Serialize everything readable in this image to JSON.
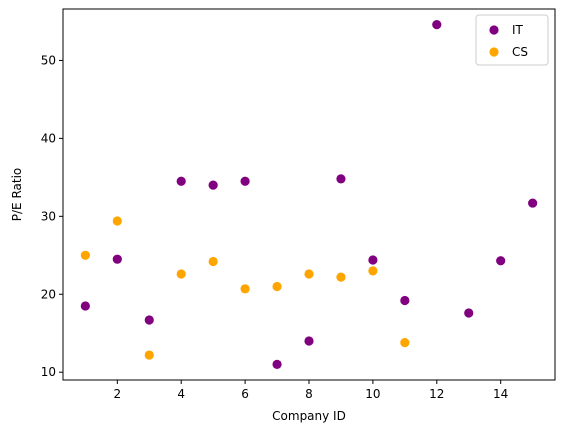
{
  "chart_data": {
    "type": "scatter",
    "title": "",
    "xlabel": "Company ID",
    "ylabel": "P/E Ratio",
    "xlim": [
      0.3,
      15.7
    ],
    "ylim": [
      9.0,
      56.6
    ],
    "xticks": [
      2,
      4,
      6,
      8,
      10,
      12,
      14
    ],
    "yticks": [
      10,
      20,
      30,
      40,
      50
    ],
    "grid": false,
    "legend_position": "top-right",
    "series": [
      {
        "name": "IT",
        "color": "#800080",
        "points": [
          {
            "x": 1,
            "y": 18.5
          },
          {
            "x": 2,
            "y": 24.5
          },
          {
            "x": 3,
            "y": 16.7
          },
          {
            "x": 4,
            "y": 34.5
          },
          {
            "x": 5,
            "y": 34.0
          },
          {
            "x": 6,
            "y": 34.5
          },
          {
            "x": 7,
            "y": 11.0
          },
          {
            "x": 8,
            "y": 14.0
          },
          {
            "x": 9,
            "y": 34.8
          },
          {
            "x": 10,
            "y": 24.4
          },
          {
            "x": 11,
            "y": 19.2
          },
          {
            "x": 12,
            "y": 54.6
          },
          {
            "x": 13,
            "y": 17.6
          },
          {
            "x": 14,
            "y": 24.3
          },
          {
            "x": 15,
            "y": 31.7
          }
        ]
      },
      {
        "name": "CS",
        "color": "#FFA500",
        "points": [
          {
            "x": 1,
            "y": 25.0
          },
          {
            "x": 2,
            "y": 29.4
          },
          {
            "x": 3,
            "y": 12.2
          },
          {
            "x": 4,
            "y": 22.6
          },
          {
            "x": 5,
            "y": 24.2
          },
          {
            "x": 6,
            "y": 20.7
          },
          {
            "x": 7,
            "y": 21.0
          },
          {
            "x": 8,
            "y": 22.6
          },
          {
            "x": 9,
            "y": 22.2
          },
          {
            "x": 10,
            "y": 23.0
          },
          {
            "x": 11,
            "y": 13.8
          }
        ]
      }
    ]
  }
}
